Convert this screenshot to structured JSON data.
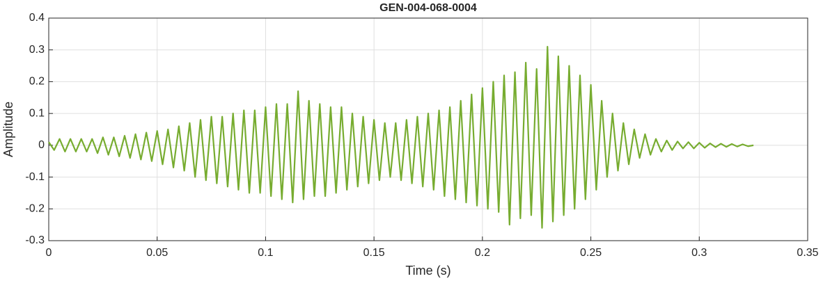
{
  "chart_data": {
    "type": "line",
    "title": "GEN-004-068-0004",
    "x_label": "Time (s)",
    "y_label": "Amplitude",
    "xlim": [
      0,
      0.35
    ],
    "xticks": [
      0,
      0.05,
      0.1,
      0.15,
      0.2,
      0.25,
      0.3,
      0.35
    ],
    "ylim": [
      -0.3,
      0.4
    ],
    "yticks": [
      -0.3,
      -0.2,
      -0.1,
      0,
      0.1,
      0.2,
      0.3,
      0.4
    ],
    "grid": true,
    "x": [
      0,
      0.0025,
      0.005,
      0.0075,
      0.01,
      0.0125,
      0.015,
      0.0175,
      0.02,
      0.0225,
      0.025,
      0.0275,
      0.03,
      0.0325,
      0.035,
      0.0375,
      0.04,
      0.0425,
      0.045,
      0.0475,
      0.05,
      0.0525,
      0.055,
      0.0575,
      0.06,
      0.0625,
      0.065,
      0.0675,
      0.07,
      0.0725,
      0.075,
      0.0775,
      0.08,
      0.0825,
      0.085,
      0.0875,
      0.09,
      0.0925,
      0.095,
      0.0975,
      0.1,
      0.1025,
      0.105,
      0.1075,
      0.11,
      0.1125,
      0.115,
      0.1175,
      0.12,
      0.1225,
      0.125,
      0.1275,
      0.13,
      0.1325,
      0.135,
      0.1375,
      0.14,
      0.1425,
      0.145,
      0.1475,
      0.15,
      0.1525,
      0.155,
      0.1575,
      0.16,
      0.1625,
      0.165,
      0.1675,
      0.17,
      0.1725,
      0.175,
      0.1775,
      0.18,
      0.1825,
      0.185,
      0.1875,
      0.19,
      0.1925,
      0.195,
      0.1975,
      0.2,
      0.2025,
      0.205,
      0.2075,
      0.21,
      0.2125,
      0.215,
      0.2175,
      0.22,
      0.2225,
      0.225,
      0.2275,
      0.23,
      0.2325,
      0.235,
      0.2375,
      0.24,
      0.2425,
      0.245,
      0.2475,
      0.25,
      0.2525,
      0.255,
      0.2575,
      0.26,
      0.2625,
      0.265,
      0.2675,
      0.27,
      0.2725,
      0.275,
      0.2775,
      0.28,
      0.2825,
      0.285,
      0.2875,
      0.29,
      0.2925,
      0.295,
      0.2975,
      0.3,
      0.3025,
      0.305,
      0.3075,
      0.31,
      0.3125,
      0.315,
      0.3175,
      0.32,
      0.3225,
      0.325
    ],
    "series": [
      {
        "color": "#77ac30",
        "values": [
          0.01,
          -0.015,
          0.02,
          -0.02,
          0.02,
          -0.02,
          0.02,
          -0.02,
          0.02,
          -0.025,
          0.025,
          -0.03,
          0.025,
          -0.035,
          0.03,
          -0.04,
          0.035,
          -0.045,
          0.04,
          -0.05,
          0.045,
          -0.06,
          0.05,
          -0.07,
          0.06,
          -0.08,
          0.07,
          -0.1,
          0.08,
          -0.11,
          0.09,
          -0.12,
          0.09,
          -0.13,
          0.1,
          -0.14,
          0.11,
          -0.15,
          0.11,
          -0.15,
          0.12,
          -0.16,
          0.13,
          -0.17,
          0.13,
          -0.18,
          0.17,
          -0.17,
          0.14,
          -0.16,
          0.13,
          -0.16,
          0.12,
          -0.15,
          0.12,
          -0.14,
          0.1,
          -0.13,
          0.09,
          -0.12,
          0.08,
          -0.11,
          0.07,
          -0.1,
          0.07,
          -0.11,
          0.08,
          -0.12,
          0.09,
          -0.13,
          0.1,
          -0.14,
          0.11,
          -0.16,
          0.12,
          -0.17,
          0.14,
          -0.18,
          0.16,
          -0.19,
          0.18,
          -0.2,
          0.2,
          -0.21,
          0.22,
          -0.25,
          0.23,
          -0.23,
          0.26,
          -0.22,
          0.24,
          -0.26,
          0.31,
          -0.24,
          0.28,
          -0.22,
          0.25,
          -0.2,
          0.22,
          -0.17,
          0.19,
          -0.14,
          0.14,
          -0.1,
          0.1,
          -0.08,
          0.07,
          -0.06,
          0.05,
          -0.04,
          0.035,
          -0.03,
          0.02,
          -0.02,
          0.015,
          -0.015,
          0.012,
          -0.01,
          0.01,
          -0.01,
          0.008,
          -0.008,
          0.006,
          -0.006,
          0.005,
          -0.005,
          0.004,
          -0.004,
          0.003,
          -0.003,
          0
        ]
      }
    ]
  }
}
